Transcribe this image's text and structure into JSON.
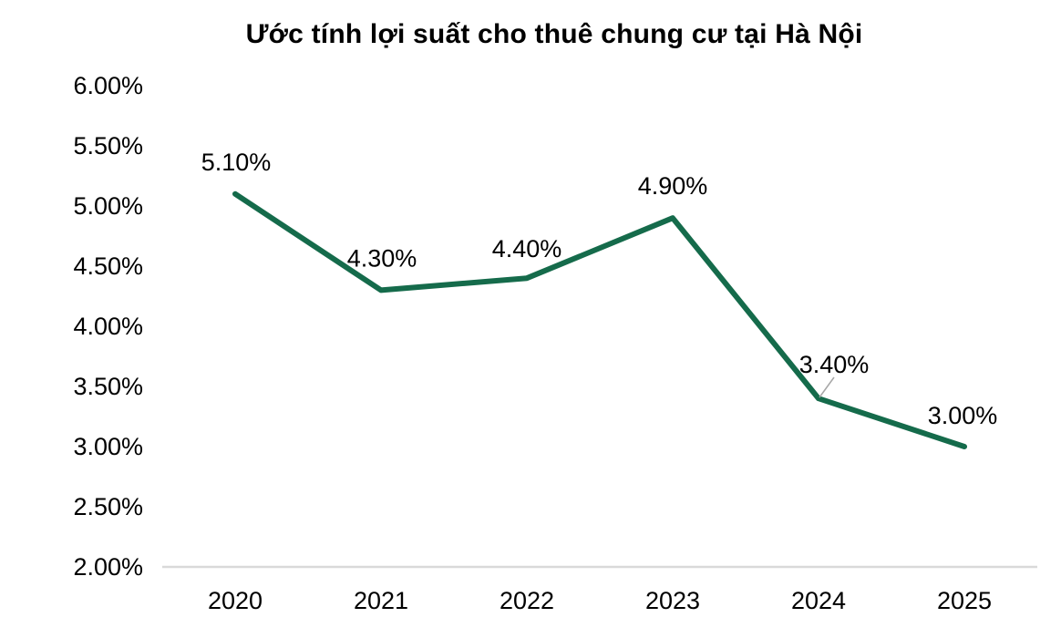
{
  "chart_data": {
    "type": "line",
    "title": "Ước tính lợi suất cho thuê chung cư tại Hà Nội",
    "categories": [
      "2020",
      "2021",
      "2022",
      "2023",
      "2024",
      "2025"
    ],
    "values": [
      5.1,
      4.3,
      4.4,
      4.9,
      3.4,
      3.0
    ],
    "data_labels": [
      "5.10%",
      "4.30%",
      "4.40%",
      "4.90%",
      "3.40%",
      "3.00%"
    ],
    "y_ticks": {
      "labels": [
        "6.00%",
        "5.50%",
        "5.00%",
        "4.50%",
        "4.00%",
        "3.50%",
        "3.00%",
        "2.50%",
        "2.00%"
      ],
      "values": [
        6.0,
        5.5,
        5.0,
        4.5,
        4.0,
        3.5,
        3.0,
        2.5,
        2.0
      ]
    },
    "xlabel": "",
    "ylabel": "",
    "ylim": [
      2.0,
      6.0
    ],
    "grid": false,
    "legend": "none",
    "colors": {
      "line": "#156B4B",
      "axis_line": "#D9D9D9",
      "leader_line": "#A6A6A6",
      "text": "#000000",
      "background": "#FFFFFF"
    }
  }
}
